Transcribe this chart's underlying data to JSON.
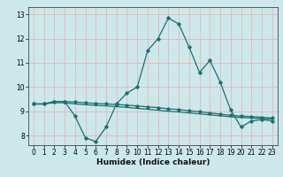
{
  "xlabel": "Humidex (Indice chaleur)",
  "background_color": "#cce8ea",
  "grid_color": "#e8b4b8",
  "line_color": "#1a7070",
  "xlim": [
    -0.5,
    23.5
  ],
  "ylim": [
    7.6,
    13.3
  ],
  "yticks": [
    8,
    9,
    10,
    11,
    12,
    13
  ],
  "xticks": [
    0,
    1,
    2,
    3,
    4,
    5,
    6,
    7,
    8,
    9,
    10,
    11,
    12,
    13,
    14,
    15,
    16,
    17,
    18,
    19,
    20,
    21,
    22,
    23
  ],
  "line_main_x": [
    0,
    1,
    2,
    3,
    4,
    5,
    6,
    7,
    8,
    9,
    10,
    11,
    12,
    13,
    14,
    15,
    16,
    17,
    18,
    19,
    20,
    21,
    22,
    23
  ],
  "line_main_y": [
    9.3,
    9.3,
    9.4,
    9.4,
    8.8,
    7.9,
    7.75,
    8.35,
    9.3,
    9.75,
    10.0,
    11.5,
    12.0,
    12.85,
    12.6,
    11.65,
    10.6,
    11.1,
    10.2,
    9.05,
    8.35,
    8.6,
    8.65,
    8.6
  ],
  "line_flat1_x": [
    0,
    1,
    2,
    3,
    4,
    5,
    6,
    7,
    8,
    9,
    10,
    11,
    12,
    13,
    14,
    15,
    16,
    17,
    18,
    19,
    20,
    21,
    22,
    23
  ],
  "line_flat1_y": [
    9.3,
    9.3,
    9.4,
    9.4,
    9.38,
    9.35,
    9.32,
    9.3,
    9.28,
    9.25,
    9.22,
    9.18,
    9.15,
    9.1,
    9.07,
    9.02,
    8.98,
    8.93,
    8.88,
    8.83,
    8.8,
    8.78,
    8.75,
    8.72
  ],
  "line_flat2_x": [
    0,
    1,
    2,
    3,
    4,
    5,
    6,
    7,
    8,
    9,
    10,
    11,
    12,
    13,
    14,
    15,
    16,
    17,
    18,
    19,
    20,
    21,
    22,
    23
  ],
  "line_flat2_y": [
    9.3,
    9.3,
    9.35,
    9.35,
    9.3,
    9.27,
    9.24,
    9.22,
    9.19,
    9.16,
    9.12,
    9.08,
    9.04,
    9.0,
    8.97,
    8.93,
    8.89,
    8.85,
    8.81,
    8.77,
    8.74,
    8.72,
    8.7,
    8.67
  ]
}
